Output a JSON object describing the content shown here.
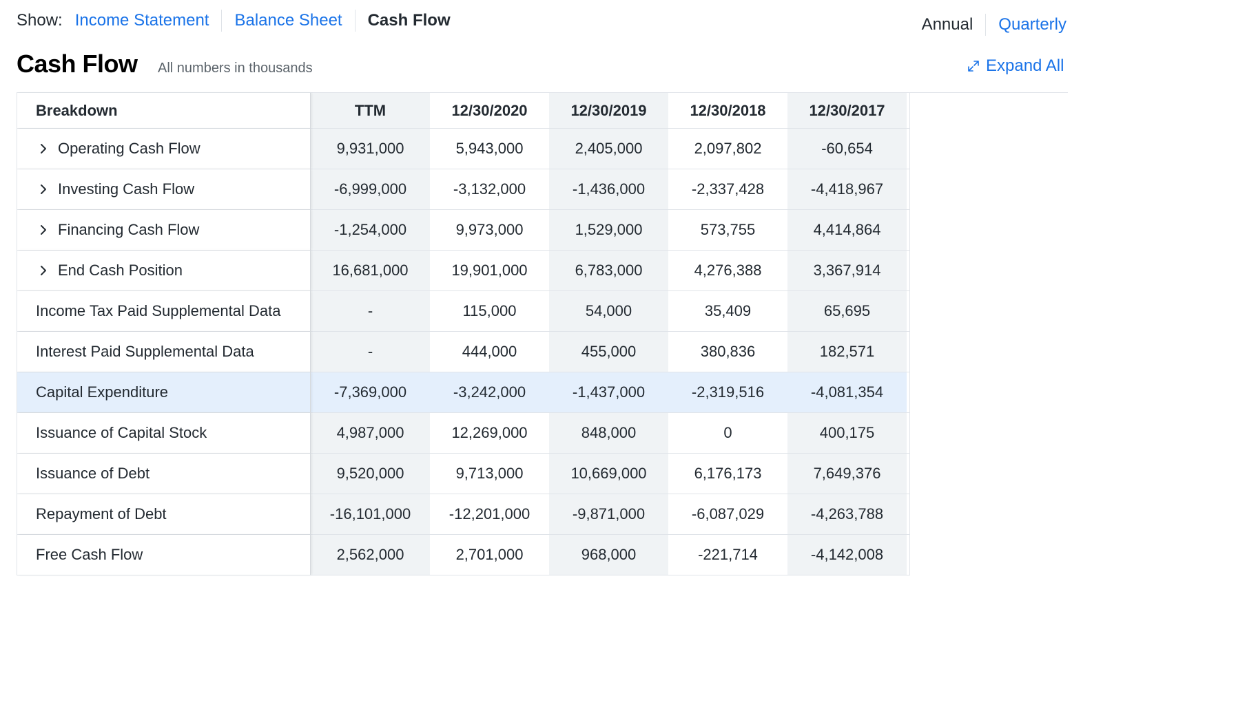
{
  "nav": {
    "show_label": "Show:",
    "tabs": [
      {
        "label": "Income Statement"
      },
      {
        "label": "Balance Sheet"
      },
      {
        "label": "Cash Flow"
      }
    ]
  },
  "period": {
    "annual": "Annual",
    "quarterly": "Quarterly"
  },
  "header": {
    "title": "Cash Flow",
    "subtitle": "All numbers in thousands",
    "expand_all": "Expand All"
  },
  "table": {
    "columns": [
      "Breakdown",
      "TTM",
      "12/30/2020",
      "12/30/2019",
      "12/30/2018",
      "12/30/2017"
    ],
    "rows": [
      {
        "label": "Operating Cash Flow",
        "values": [
          "9,931,000",
          "5,943,000",
          "2,405,000",
          "2,097,802",
          "-60,654"
        ]
      },
      {
        "label": "Investing Cash Flow",
        "values": [
          "-6,999,000",
          "-3,132,000",
          "-1,436,000",
          "-2,337,428",
          "-4,418,967"
        ]
      },
      {
        "label": "Financing Cash Flow",
        "values": [
          "-1,254,000",
          "9,973,000",
          "1,529,000",
          "573,755",
          "4,414,864"
        ]
      },
      {
        "label": "End Cash Position",
        "values": [
          "16,681,000",
          "19,901,000",
          "6,783,000",
          "4,276,388",
          "3,367,914"
        ]
      },
      {
        "label": "Income Tax Paid Supplemental Data",
        "values": [
          "-",
          "115,000",
          "54,000",
          "35,409",
          "65,695"
        ]
      },
      {
        "label": "Interest Paid Supplemental Data",
        "values": [
          "-",
          "444,000",
          "455,000",
          "380,836",
          "182,571"
        ]
      },
      {
        "label": "Capital Expenditure",
        "values": [
          "-7,369,000",
          "-3,242,000",
          "-1,437,000",
          "-2,319,516",
          "-4,081,354"
        ]
      },
      {
        "label": "Issuance of Capital Stock",
        "values": [
          "4,987,000",
          "12,269,000",
          "848,000",
          "0",
          "400,175"
        ]
      },
      {
        "label": "Issuance of Debt",
        "values": [
          "9,520,000",
          "9,713,000",
          "10,669,000",
          "6,176,173",
          "7,649,376"
        ]
      },
      {
        "label": "Repayment of Debt",
        "values": [
          "-16,101,000",
          "-12,201,000",
          "-9,871,000",
          "-6,087,029",
          "-4,263,788"
        ]
      },
      {
        "label": "Free Cash Flow",
        "values": [
          "2,562,000",
          "2,701,000",
          "968,000",
          "-221,714",
          "-4,142,008"
        ]
      }
    ]
  },
  "icons": {
    "expand": "expand-arrows-icon",
    "row_toggle": "chevron-right-icon"
  },
  "colors": {
    "link": "#1a73e8",
    "highlight_row": "#e4effc",
    "shaded_column": "#f0f3f5"
  }
}
